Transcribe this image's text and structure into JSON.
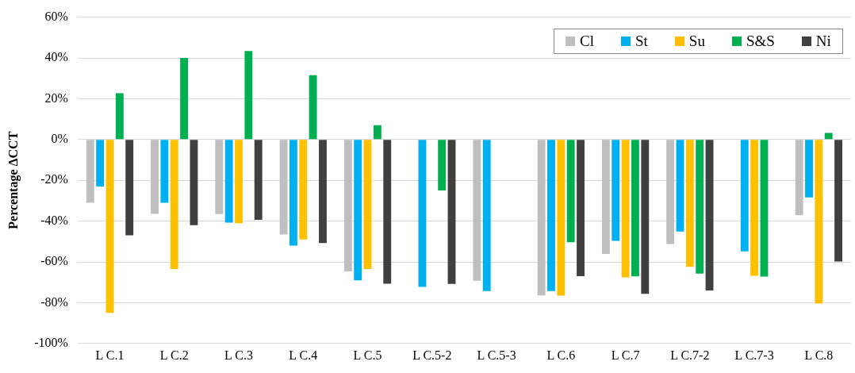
{
  "chart_data": {
    "type": "bar",
    "ylabel": "Percentage ΔCCT",
    "categories": [
      "L C.1",
      "L C.2",
      "L C.3",
      "L C.4",
      "L C.5",
      "L C.5-2",
      "L C.5-3",
      "L C.6",
      "L C.7",
      "L C.7-2",
      "L C.7-3",
      "L C.8"
    ],
    "series": [
      {
        "name": "Cl",
        "color": "#bfbfbf",
        "values": [
          -31,
          -36.5,
          -36.6,
          -46.6,
          -64.7,
          null,
          -69.2,
          -76.4,
          -56.1,
          -51.2,
          null,
          -37.1
        ]
      },
      {
        "name": "St",
        "color": "#00b0f0",
        "values": [
          -23,
          -31,
          -40.7,
          -52,
          -69,
          -72.3,
          -74.3,
          -74.3,
          -49.7,
          -45.1,
          -54.8,
          -28.4
        ]
      },
      {
        "name": "Su",
        "color": "#ffc000",
        "values": [
          -85,
          -63.5,
          -41,
          -49,
          -63.5,
          null,
          null,
          -76.5,
          -67.6,
          -62.4,
          -66.8,
          -80.4
        ]
      },
      {
        "name": "S&S",
        "color": "#00b050",
        "values": [
          22.7,
          40,
          43.4,
          31.5,
          7,
          -25,
          null,
          -50.4,
          -67.1,
          -65.7,
          -67.2,
          3.2
        ]
      },
      {
        "name": "Ni",
        "color": "#404040",
        "values": [
          -47,
          -42,
          -39.4,
          -50.8,
          -70.7,
          -70.8,
          null,
          -67,
          -75.7,
          -74,
          null,
          -59.8
        ]
      }
    ],
    "ylim": [
      -100,
      60
    ],
    "yticks": [
      {
        "value": -100,
        "label": "-100%"
      },
      {
        "value": -80,
        "label": "-80%"
      },
      {
        "value": -60,
        "label": "-60%"
      },
      {
        "value": -40,
        "label": "-40%"
      },
      {
        "value": -20,
        "label": "-20%"
      },
      {
        "value": 0,
        "label": "0%"
      },
      {
        "value": 20,
        "label": "20%"
      },
      {
        "value": 40,
        "label": "40%"
      },
      {
        "value": 60,
        "label": "60%"
      }
    ],
    "grid": "y",
    "legend": "top right"
  }
}
